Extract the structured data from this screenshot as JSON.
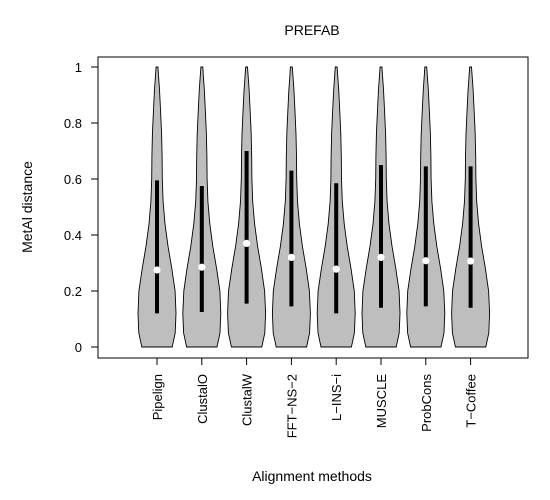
{
  "chart_data": {
    "type": "violin",
    "title": "PREFAB",
    "xlabel": "Alignment methods",
    "ylabel": "MetAl distance",
    "ylim": [
      0,
      1
    ],
    "yticks": [
      "0",
      "0.2",
      "0.4",
      "0.6",
      "0.8",
      "1"
    ],
    "categories": [
      "Pipelign",
      "ClustalO",
      "ClustalW",
      "FFT−NS−2",
      "L−INS−i",
      "MUSCLE",
      "ProbCons",
      "T−Coffee"
    ],
    "medians": [
      0.275,
      0.285,
      0.37,
      0.32,
      0.278,
      0.32,
      0.308,
      0.307
    ],
    "iqr": [
      [
        0.12,
        0.595
      ],
      [
        0.125,
        0.575
      ],
      [
        0.155,
        0.7
      ],
      [
        0.145,
        0.63
      ],
      [
        0.12,
        0.585
      ],
      [
        0.14,
        0.65
      ],
      [
        0.145,
        0.645
      ],
      [
        0.14,
        0.645
      ]
    ],
    "fill_color": "#bebebe",
    "grid": false
  }
}
